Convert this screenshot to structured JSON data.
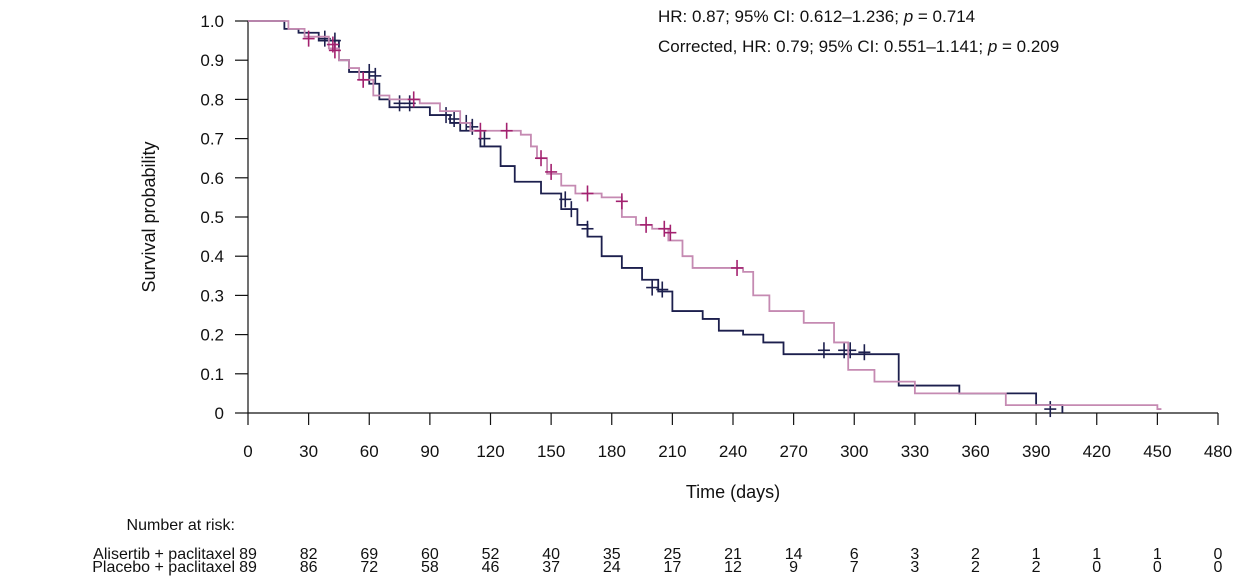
{
  "chart_data": {
    "type": "line",
    "subtype": "kaplan-meier-step",
    "xlabel": "Time (days)",
    "ylabel": "Survival probability",
    "xlim": [
      0,
      480
    ],
    "ylim": [
      0,
      1.0
    ],
    "x_ticks": [
      "0",
      "30",
      "60",
      "90",
      "120",
      "150",
      "180",
      "210",
      "240",
      "270",
      "300",
      "330",
      "360",
      "390",
      "420",
      "450",
      "480"
    ],
    "y_ticks": [
      "1.0",
      "0.9",
      "0.8",
      "0.7",
      "0.6",
      "0.5",
      "0.4",
      "0.3",
      "0.2",
      "0.1",
      "0"
    ],
    "grid": false,
    "annotations": [
      {
        "parts": [
          {
            "text": "HR: 0.87; 95% CI: 0.612–1.236; "
          },
          {
            "text": "p",
            "italic": true
          },
          {
            "text": " = 0.714"
          }
        ]
      },
      {
        "parts": [
          {
            "text": "Corrected, HR: 0.79; 95% CI: 0.551–1.141; "
          },
          {
            "text": "p",
            "italic": true
          },
          {
            "text": " = 0.209"
          }
        ]
      }
    ],
    "series": [
      {
        "name": "Alisertib + paclitaxel",
        "color": "#a3216f",
        "color_light": "#c58ab2",
        "steps": [
          [
            0,
            1.0
          ],
          [
            20,
            0.98
          ],
          [
            28,
            0.96
          ],
          [
            40,
            0.93
          ],
          [
            45,
            0.9
          ],
          [
            50,
            0.88
          ],
          [
            55,
            0.85
          ],
          [
            62,
            0.81
          ],
          [
            70,
            0.8
          ],
          [
            85,
            0.79
          ],
          [
            95,
            0.77
          ],
          [
            105,
            0.74
          ],
          [
            110,
            0.72
          ],
          [
            135,
            0.71
          ],
          [
            140,
            0.68
          ],
          [
            143,
            0.65
          ],
          [
            148,
            0.61
          ],
          [
            155,
            0.58
          ],
          [
            162,
            0.56
          ],
          [
            175,
            0.55
          ],
          [
            185,
            0.5
          ],
          [
            192,
            0.48
          ],
          [
            200,
            0.47
          ],
          [
            208,
            0.44
          ],
          [
            215,
            0.4
          ],
          [
            220,
            0.37
          ],
          [
            245,
            0.36
          ],
          [
            250,
            0.3
          ],
          [
            258,
            0.26
          ],
          [
            275,
            0.23
          ],
          [
            290,
            0.18
          ],
          [
            297,
            0.11
          ],
          [
            310,
            0.08
          ],
          [
            330,
            0.05
          ],
          [
            375,
            0.02
          ],
          [
            450,
            0.01
          ]
        ],
        "end_x": 452,
        "censors": [
          [
            30,
            0.955
          ],
          [
            42,
            0.94
          ],
          [
            43,
            0.925
          ],
          [
            57,
            0.85
          ],
          [
            82,
            0.8
          ],
          [
            115,
            0.72
          ],
          [
            128,
            0.72
          ],
          [
            145,
            0.65
          ],
          [
            150,
            0.615
          ],
          [
            168,
            0.56
          ],
          [
            185,
            0.54
          ],
          [
            197,
            0.48
          ],
          [
            206,
            0.47
          ],
          [
            209,
            0.46
          ],
          [
            242,
            0.37
          ]
        ]
      },
      {
        "name": "Placebo + paclitaxel",
        "color": "#1c1f4d",
        "steps": [
          [
            0,
            1.0
          ],
          [
            18,
            0.98
          ],
          [
            25,
            0.97
          ],
          [
            35,
            0.95
          ],
          [
            45,
            0.9
          ],
          [
            50,
            0.87
          ],
          [
            60,
            0.84
          ],
          [
            65,
            0.8
          ],
          [
            70,
            0.78
          ],
          [
            90,
            0.76
          ],
          [
            100,
            0.74
          ],
          [
            105,
            0.72
          ],
          [
            115,
            0.68
          ],
          [
            125,
            0.63
          ],
          [
            132,
            0.59
          ],
          [
            145,
            0.56
          ],
          [
            155,
            0.52
          ],
          [
            163,
            0.48
          ],
          [
            168,
            0.45
          ],
          [
            175,
            0.4
          ],
          [
            185,
            0.37
          ],
          [
            195,
            0.34
          ],
          [
            203,
            0.31
          ],
          [
            210,
            0.26
          ],
          [
            225,
            0.24
          ],
          [
            233,
            0.21
          ],
          [
            245,
            0.2
          ],
          [
            255,
            0.18
          ],
          [
            265,
            0.15
          ],
          [
            322,
            0.07
          ],
          [
            352,
            0.05
          ],
          [
            390,
            0.02
          ],
          [
            403,
            0
          ]
        ],
        "end_x": 403,
        "censors": [
          [
            38,
            0.955
          ],
          [
            43,
            0.95
          ],
          [
            60,
            0.87
          ],
          [
            63,
            0.86
          ],
          [
            75,
            0.79
          ],
          [
            80,
            0.79
          ],
          [
            98,
            0.76
          ],
          [
            102,
            0.75
          ],
          [
            108,
            0.74
          ],
          [
            111,
            0.73
          ],
          [
            117,
            0.7
          ],
          [
            157,
            0.545
          ],
          [
            160,
            0.52
          ],
          [
            168,
            0.47
          ],
          [
            200,
            0.32
          ],
          [
            205,
            0.315
          ],
          [
            285,
            0.16
          ],
          [
            295,
            0.16
          ],
          [
            298,
            0.16
          ],
          [
            305,
            0.155
          ],
          [
            397,
            0.01
          ]
        ]
      }
    ],
    "risk_table": {
      "title": "Number at risk:",
      "rows": [
        {
          "label": "Alisertib + paclitaxel",
          "values": [
            "89",
            "82",
            "69",
            "60",
            "52",
            "40",
            "35",
            "25",
            "21",
            "14",
            "6",
            "3",
            "2",
            "1",
            "1",
            "1",
            "0"
          ]
        },
        {
          "label": "Placebo + paclitaxel",
          "values": [
            "89",
            "86",
            "72",
            "58",
            "46",
            "37",
            "24",
            "17",
            "12",
            "9",
            "7",
            "3",
            "2",
            "2",
            "0",
            "0",
            "0"
          ]
        }
      ]
    }
  }
}
